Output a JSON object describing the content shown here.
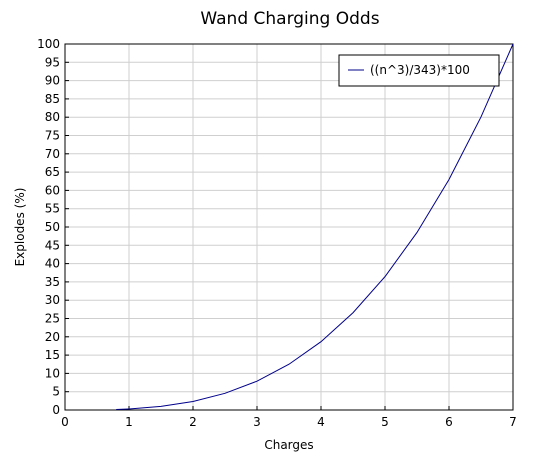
{
  "chart_data": {
    "type": "line",
    "title": "Wand Charging Odds",
    "xlabel": "Charges",
    "ylabel": "Explodes (%)",
    "xlim": [
      0,
      7
    ],
    "ylim": [
      0,
      100
    ],
    "x_ticks": [
      "0",
      "1",
      "2",
      "3",
      "4",
      "5",
      "6",
      "7"
    ],
    "y_ticks": [
      "0",
      "5",
      "10",
      "15",
      "20",
      "25",
      "30",
      "35",
      "40",
      "45",
      "50",
      "55",
      "60",
      "65",
      "70",
      "75",
      "80",
      "85",
      "90",
      "95",
      "100"
    ],
    "grid": true,
    "legend_position": "top-right",
    "series": [
      {
        "name": "((n^3)/343)*100",
        "color": "#00008b",
        "x": [
          0.8,
          1,
          1.5,
          2,
          2.5,
          3,
          3.5,
          4,
          4.5,
          5,
          5.5,
          6,
          6.5,
          7
        ],
        "y": [
          0.15,
          0.29,
          0.98,
          2.33,
          4.56,
          7.87,
          12.5,
          18.66,
          26.57,
          36.44,
          48.51,
          62.97,
          80.07,
          100
        ]
      }
    ]
  }
}
